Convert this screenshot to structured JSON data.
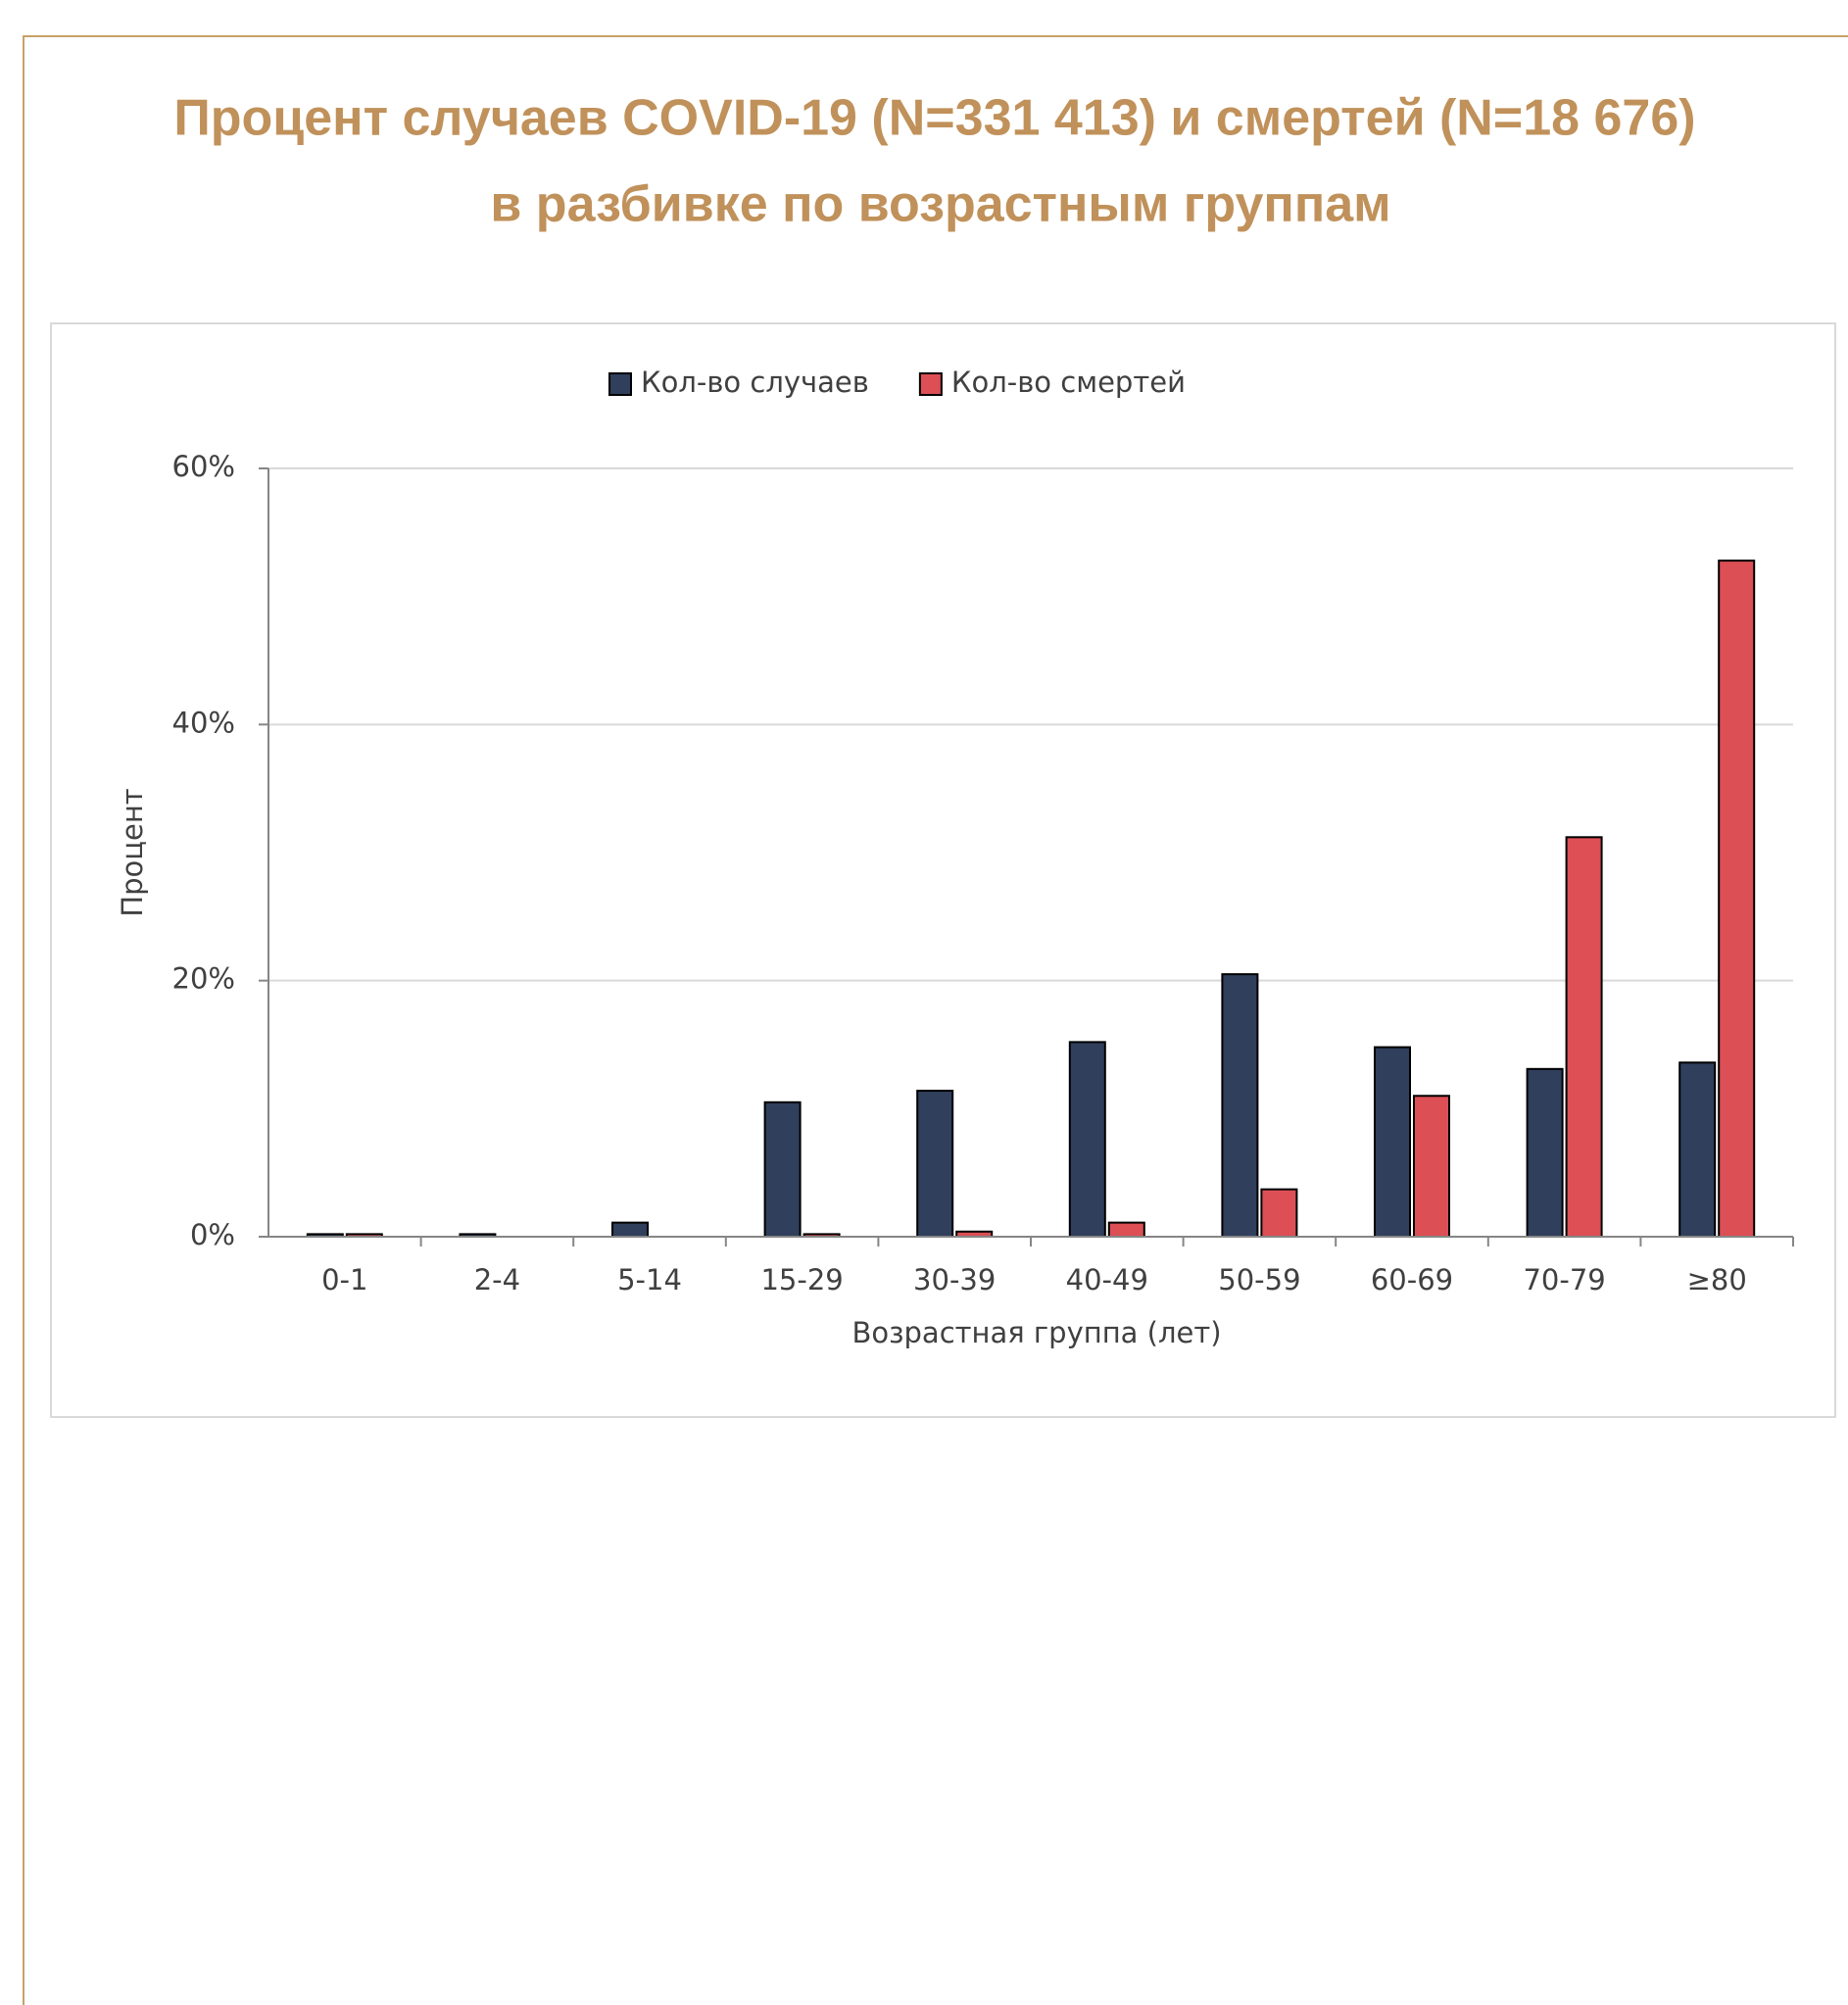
{
  "chart_data": {
    "type": "bar",
    "title": "Процент случаев COVID-19 (N=331 413) и смертей (N=18 676)",
    "subtitle": "в разбивке по возрастным группам",
    "x_label": "Возрастная группа (лет)",
    "y_label": "Процент",
    "categories": [
      "0-1",
      "2-4",
      "5-14",
      "15-29",
      "30-39",
      "40-49",
      "50-59",
      "60-69",
      "70-79",
      "≥80"
    ],
    "series": [
      {
        "name": "Кол-во случаев",
        "color": "#2f3f5c",
        "values": [
          0.2,
          0.2,
          1.1,
          10.5,
          11.4,
          15.2,
          20.5,
          14.8,
          13.1,
          13.6
        ]
      },
      {
        "name": "Кол-во смертей",
        "color": "#dc4f55",
        "values": [
          0.2,
          0,
          0,
          0.2,
          0.4,
          1.1,
          3.7,
          11.0,
          31.2,
          52.8
        ]
      }
    ],
    "ylim": [
      0,
      60
    ],
    "yticks": [
      {
        "value": 0,
        "label": "0%"
      },
      {
        "value": 20,
        "label": "20%"
      },
      {
        "value": 40,
        "label": "40%"
      },
      {
        "value": 60,
        "label": "60%"
      }
    ],
    "grid": true,
    "legend": "top"
  }
}
